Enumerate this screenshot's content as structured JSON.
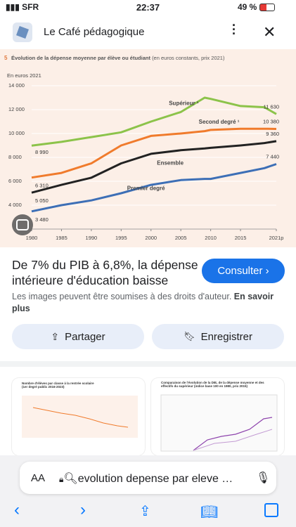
{
  "status_bar": {
    "carrier": "SFR",
    "time": "22:37",
    "battery": "49 %"
  },
  "header": {
    "site": "Le Café pédagogique"
  },
  "chart": {
    "type": "line",
    "number": "5",
    "title": "Évolution de la dépense moyenne par élève ou étudiant",
    "subtitle": "(en euros constants, prix 2021)",
    "y_label": "En euros 2021",
    "x": [
      1980,
      1985,
      1990,
      1995,
      2000,
      2005,
      2009,
      2010,
      2015,
      2019,
      2021
    ],
    "xlim": [
      1980,
      2021
    ],
    "xticks": [
      1980,
      1985,
      1990,
      1995,
      2000,
      2005,
      2010,
      2015,
      {
        "value": 2021,
        "label": "2021p"
      }
    ],
    "ylim": [
      2000,
      14000
    ],
    "yticks": [
      {
        "value": 4000,
        "label": "4 000"
      },
      {
        "value": 6000,
        "label": "6 000"
      },
      {
        "value": 8000,
        "label": "8 000"
      },
      {
        "value": 10000,
        "label": "10 000"
      },
      {
        "value": 12000,
        "label": "12 000"
      },
      {
        "value": 14000,
        "label": "14 000"
      }
    ],
    "grid": true,
    "series": [
      {
        "name": "Supérieur ¹",
        "color": "#8cc34a",
        "values": [
          8990,
          9300,
          9700,
          10100,
          11000,
          11800,
          13000,
          12900,
          12300,
          12200,
          11630
        ],
        "value_labels": [
          "8 990",
          null,
          null,
          null,
          null,
          null,
          null,
          null,
          null,
          null,
          "11 630"
        ]
      },
      {
        "name": "Second degré ¹",
        "color": "#f07b2c",
        "values": [
          6310,
          6700,
          7500,
          9000,
          9800,
          10000,
          10200,
          10300,
          10400,
          10400,
          10380
        ],
        "value_labels": [
          "6 310",
          null,
          null,
          null,
          null,
          null,
          null,
          null,
          null,
          null,
          "10 380"
        ]
      },
      {
        "name": "Ensemble",
        "color": "#222222",
        "values": [
          5050,
          5700,
          6300,
          7500,
          8300,
          8600,
          8750,
          8800,
          9000,
          9200,
          9360
        ],
        "value_labels": [
          "5 050",
          null,
          null,
          null,
          null,
          null,
          null,
          null,
          null,
          null,
          "9 360"
        ]
      },
      {
        "name": "Premier degré",
        "color": "#3d6fb6",
        "values": [
          3480,
          4000,
          4400,
          5000,
          5700,
          6100,
          6200,
          6200,
          6700,
          7100,
          7440
        ],
        "value_labels": [
          "3 480",
          null,
          null,
          null,
          null,
          null,
          null,
          null,
          null,
          null,
          "7 440"
        ]
      }
    ]
  },
  "result": {
    "title": "De 7% du PIB à 6,8%, la dépense intérieure d'éducation baisse",
    "visit": "Consulter ›",
    "copyright": "Les images peuvent être soumises à des droits d'auteur.",
    "learn_more": "En savoir plus",
    "share": "Partager",
    "save": "Enregistrer"
  },
  "thumbnails": [
    {
      "title": "Nombre d'élèves par classe à la rentrée scolaire (1er degré public 2016-2023)"
    },
    {
      "title": "Comparaison de l'évolution de la DIE, de la dépense moyenne et des effectifs du supérieur (indice base 100 en 1980, prix 2015)"
    }
  ],
  "address_bar": {
    "text_size": "AA",
    "query": "evolution depense par eleve et etudiant"
  }
}
